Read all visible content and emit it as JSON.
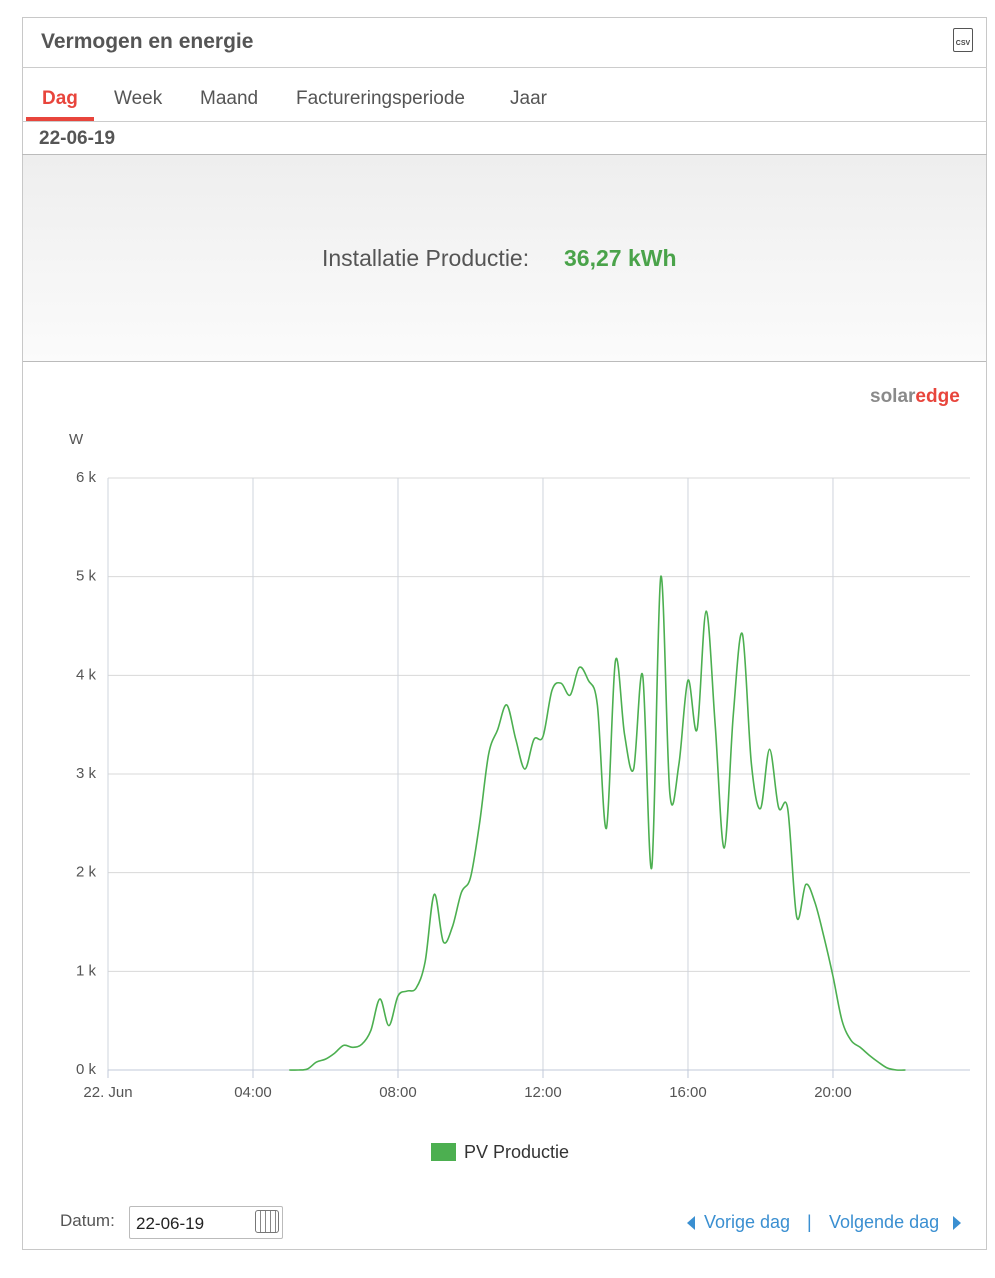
{
  "header": {
    "title": "Vermogen en energie",
    "csv_icon": "CSV"
  },
  "tabs": [
    "Dag",
    "Week",
    "Maand",
    "Factureringsperiode",
    "Jaar"
  ],
  "active_tab": 0,
  "date": "22-06-19",
  "summary": {
    "label": "Installatie Productie:",
    "value": "36,27 kWh"
  },
  "logo": {
    "part1": "solar",
    "part2": "edge"
  },
  "chart_data": {
    "type": "line",
    "ylabel": "W",
    "x": [
      5,
      5.25,
      5.5,
      5.75,
      6,
      6.25,
      6.5,
      6.75,
      7,
      7.25,
      7.5,
      7.75,
      8,
      8.25,
      8.5,
      8.75,
      9,
      9.25,
      9.5,
      9.75,
      10,
      10.25,
      10.5,
      10.75,
      11,
      11.25,
      11.5,
      11.75,
      12,
      12.25,
      12.5,
      12.75,
      13,
      13.25,
      13.5,
      13.75,
      14,
      14.25,
      14.5,
      14.75,
      15,
      15.25,
      15.5,
      15.75,
      16,
      16.25,
      16.5,
      16.75,
      17,
      17.25,
      17.5,
      17.75,
      18,
      18.25,
      18.5,
      18.75,
      19,
      19.25,
      19.5,
      19.75,
      20,
      20.25,
      20.5,
      20.75,
      21,
      21.25,
      21.5,
      21.75,
      22
    ],
    "series": [
      {
        "name": "PV Productie",
        "color": "#4caf50",
        "values": [
          0,
          0,
          10,
          80,
          110,
          170,
          250,
          230,
          260,
          400,
          720,
          450,
          750,
          800,
          830,
          1100,
          1780,
          1300,
          1450,
          1800,
          1950,
          2500,
          3200,
          3450,
          3700,
          3350,
          3050,
          3350,
          3380,
          3850,
          3920,
          3800,
          4080,
          3950,
          3700,
          2450,
          4150,
          3400,
          3050,
          4000,
          2050,
          5000,
          2800,
          3100,
          3950,
          3450,
          4650,
          3500,
          2250,
          3600,
          4420,
          3100,
          2650,
          3250,
          2660,
          2650,
          1550,
          1880,
          1700,
          1350,
          950,
          500,
          300,
          230,
          150,
          80,
          20,
          0,
          0
        ]
      }
    ],
    "xlim": [
      0,
      23.78
    ],
    "xticks": [
      {
        "value": 0,
        "label": "22. Jun"
      },
      {
        "value": 4,
        "label": "04:00"
      },
      {
        "value": 8,
        "label": "08:00"
      },
      {
        "value": 12,
        "label": "12:00"
      },
      {
        "value": 16,
        "label": "16:00"
      },
      {
        "value": 20,
        "label": "20:00"
      }
    ],
    "ylim": [
      0,
      6000
    ],
    "yticks": [
      {
        "value": 0,
        "label": "0 k"
      },
      {
        "value": 1000,
        "label": "1 k"
      },
      {
        "value": 2000,
        "label": "2 k"
      },
      {
        "value": 3000,
        "label": "3 k"
      },
      {
        "value": 4000,
        "label": "4 k"
      },
      {
        "value": 5000,
        "label": "5 k"
      },
      {
        "value": 6000,
        "label": "6 k"
      }
    ],
    "grid": true,
    "legend": "bottom"
  },
  "footer": {
    "date_label": "Datum:",
    "date_value": "22-06-19",
    "prev": "Vorige dag",
    "separator": "|",
    "next": "Volgende dag"
  }
}
